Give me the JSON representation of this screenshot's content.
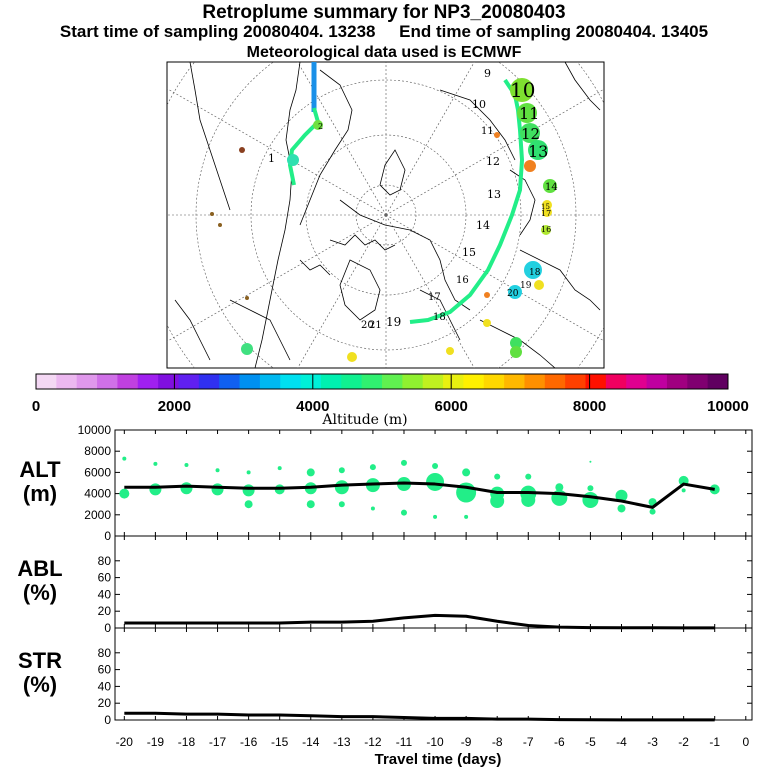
{
  "header": {
    "title": "Retroplume summary for NP3_20080403",
    "sampling": "Start time of sampling 20080404. 13238     End time of sampling 20080404. 13405",
    "met": "Meteorological data used is ECMWF"
  },
  "colors": {
    "plume": "#22ee88",
    "line": "#000000",
    "cyan": "#22d0e0",
    "yellow": "#f0e020",
    "orange": "#f08020"
  },
  "map": {
    "labels": [
      "1",
      "2",
      "9",
      "10",
      "11",
      "12",
      "13",
      "14",
      "15",
      "16",
      "17",
      "18",
      "19",
      "20",
      "21"
    ],
    "day_markers": [
      "10",
      "11",
      "12",
      "13",
      "14",
      "15",
      "16",
      "17",
      "18",
      "19",
      "20"
    ]
  },
  "colorbar": {
    "ticks": [
      "0",
      "2000",
      "4000",
      "6000",
      "8000",
      "10000"
    ],
    "label": "Altitude (m)",
    "colors": [
      "#f4d8f4",
      "#ecb8f0",
      "#e098ec",
      "#d070e8",
      "#c040e0",
      "#a020f0",
      "#8010e0",
      "#6020f0",
      "#3030f0",
      "#1060f0",
      "#0090f0",
      "#00b8f0",
      "#00e0f0",
      "#00f0d8",
      "#00f0b0",
      "#10f090",
      "#30f070",
      "#60f050",
      "#90f030",
      "#c0f020",
      "#e8f010",
      "#fff000",
      "#ffd800",
      "#ffb800",
      "#ff9000",
      "#ff6800",
      "#ff4000",
      "#ff1000",
      "#f00060",
      "#e00090",
      "#c000a0",
      "#a00080",
      "#800070",
      "#600060"
    ]
  },
  "chart_data": [
    {
      "type": "line",
      "panel": "ALT",
      "ylabel": "ALT\n(m)",
      "ylabel_lines": [
        "ALT",
        "(m)"
      ],
      "ylim": [
        0,
        10000
      ],
      "yticks": [
        "0",
        "2000",
        "4000",
        "6000",
        "8000",
        "10000"
      ],
      "x": [
        -20,
        -19,
        -18,
        -17,
        -16,
        -15,
        -14,
        -13,
        -12,
        -11,
        -10,
        -9,
        -8,
        -7,
        -6,
        -5,
        -4,
        -3,
        -2,
        -1
      ],
      "series": [
        {
          "name": "mean altitude",
          "values": [
            4600,
            4600,
            4700,
            4600,
            4500,
            4500,
            4600,
            4800,
            4900,
            5000,
            4900,
            4600,
            4100,
            4100,
            4000,
            3700,
            3300,
            2700,
            4900,
            4400
          ]
        }
      ],
      "scatter": [
        {
          "x": -20,
          "y": 4000,
          "r": 5
        },
        {
          "x": -20,
          "y": 7300,
          "r": 2
        },
        {
          "x": -19,
          "y": 4400,
          "r": 6
        },
        {
          "x": -19,
          "y": 6800,
          "r": 2
        },
        {
          "x": -18,
          "y": 4500,
          "r": 6
        },
        {
          "x": -18,
          "y": 6700,
          "r": 2
        },
        {
          "x": -17,
          "y": 4400,
          "r": 6
        },
        {
          "x": -17,
          "y": 6200,
          "r": 2
        },
        {
          "x": -16,
          "y": 4300,
          "r": 6
        },
        {
          "x": -16,
          "y": 3000,
          "r": 4
        },
        {
          "x": -16,
          "y": 6000,
          "r": 2
        },
        {
          "x": -15,
          "y": 4400,
          "r": 5
        },
        {
          "x": -15,
          "y": 6400,
          "r": 2
        },
        {
          "x": -14,
          "y": 4500,
          "r": 6
        },
        {
          "x": -14,
          "y": 3000,
          "r": 4
        },
        {
          "x": -14,
          "y": 6000,
          "r": 4
        },
        {
          "x": -13,
          "y": 4600,
          "r": 7
        },
        {
          "x": -13,
          "y": 6200,
          "r": 3
        },
        {
          "x": -13,
          "y": 3000,
          "r": 3
        },
        {
          "x": -12,
          "y": 4800,
          "r": 7
        },
        {
          "x": -12,
          "y": 6500,
          "r": 3
        },
        {
          "x": -12,
          "y": 2600,
          "r": 2
        },
        {
          "x": -11,
          "y": 4900,
          "r": 7
        },
        {
          "x": -11,
          "y": 6900,
          "r": 3
        },
        {
          "x": -11,
          "y": 2200,
          "r": 3
        },
        {
          "x": -10,
          "y": 5100,
          "r": 9
        },
        {
          "x": -10,
          "y": 6600,
          "r": 3
        },
        {
          "x": -10,
          "y": 1800,
          "r": 2
        },
        {
          "x": -9,
          "y": 4100,
          "r": 10
        },
        {
          "x": -9,
          "y": 6000,
          "r": 4
        },
        {
          "x": -9,
          "y": 1800,
          "r": 2
        },
        {
          "x": -8,
          "y": 4000,
          "r": 7
        },
        {
          "x": -8,
          "y": 3300,
          "r": 7
        },
        {
          "x": -8,
          "y": 5600,
          "r": 3
        },
        {
          "x": -7,
          "y": 4000,
          "r": 8
        },
        {
          "x": -7,
          "y": 3400,
          "r": 7
        },
        {
          "x": -7,
          "y": 5600,
          "r": 3
        },
        {
          "x": -6,
          "y": 3600,
          "r": 8
        },
        {
          "x": -6,
          "y": 4600,
          "r": 4
        },
        {
          "x": -5,
          "y": 3400,
          "r": 8
        },
        {
          "x": -5,
          "y": 4500,
          "r": 3
        },
        {
          "x": -5,
          "y": 7000,
          "r": 1
        },
        {
          "x": -4,
          "y": 3800,
          "r": 6
        },
        {
          "x": -4,
          "y": 2600,
          "r": 4
        },
        {
          "x": -3,
          "y": 3200,
          "r": 4
        },
        {
          "x": -3,
          "y": 2300,
          "r": 3
        },
        {
          "x": -2,
          "y": 5200,
          "r": 5
        },
        {
          "x": -2,
          "y": 4300,
          "r": 2
        },
        {
          "x": -1,
          "y": 4400,
          "r": 5
        }
      ]
    },
    {
      "type": "line",
      "panel": "ABL",
      "ylabel": "ABL\n(%)",
      "ylabel_lines": [
        "ABL",
        "(%)"
      ],
      "ylim": [
        0,
        100
      ],
      "yticks": [
        "0",
        "20",
        "40",
        "60",
        "80"
      ],
      "x": [
        -20,
        -19,
        -18,
        -17,
        -16,
        -15,
        -14,
        -13,
        -12,
        -11,
        -10,
        -9,
        -8,
        -7,
        -6,
        -5,
        -4,
        -3,
        -2,
        -1
      ],
      "series": [
        {
          "name": "ABL fraction",
          "values": [
            6,
            6,
            6,
            6,
            6,
            6,
            7,
            7,
            8,
            12,
            15,
            14,
            8,
            3,
            1,
            0.5,
            0.3,
            0.3,
            0.2,
            0.2
          ]
        }
      ]
    },
    {
      "type": "line",
      "panel": "STR",
      "ylabel": "STR\n(%)",
      "ylabel_lines": [
        "STR",
        "(%)"
      ],
      "ylim": [
        0,
        100
      ],
      "yticks": [
        "0",
        "20",
        "40",
        "60",
        "80"
      ],
      "x": [
        -20,
        -19,
        -18,
        -17,
        -16,
        -15,
        -14,
        -13,
        -12,
        -11,
        -10,
        -9,
        -8,
        -7,
        -6,
        -5,
        -4,
        -3,
        -2,
        -1
      ],
      "series": [
        {
          "name": "stratosphere fraction",
          "values": [
            8,
            8,
            7,
            7,
            6,
            6,
            5,
            4,
            4,
            3,
            2,
            2,
            1,
            1,
            0.5,
            0.3,
            0.2,
            0.2,
            0.2,
            0.2
          ]
        }
      ],
      "xlabel": "Travel time (days)",
      "xticks": [
        "-20",
        "-19",
        "-18",
        "-17",
        "-16",
        "-15",
        "-14",
        "-13",
        "-12",
        "-11",
        "-10",
        "-9",
        "-8",
        "-7",
        "-6",
        "-5",
        "-4",
        "-3",
        "-2",
        "-1",
        "0"
      ]
    }
  ]
}
